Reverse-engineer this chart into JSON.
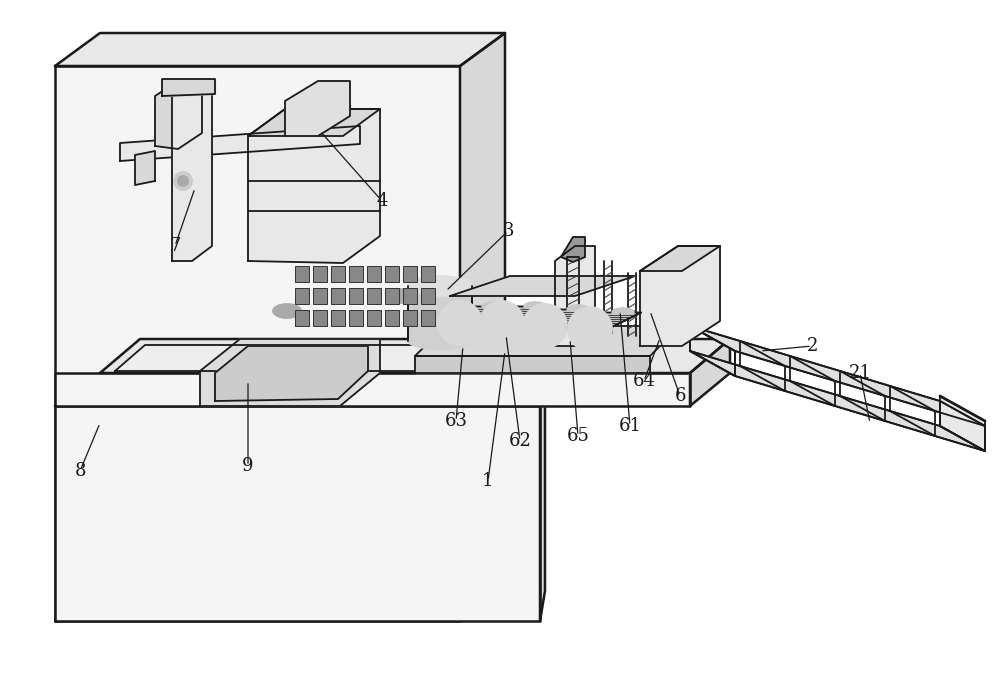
{
  "bg_color": "#ffffff",
  "lc": "#1a1a1a",
  "lw": 1.3,
  "tlw": 1.8,
  "fig_width": 10.0,
  "fig_height": 6.91,
  "dpi": 100,
  "fill_light": "#f5f5f5",
  "fill_mid": "#e8e8e8",
  "fill_dark": "#d8d8d8",
  "fill_very_dark": "#aaaaaa",
  "label_fontsize": 13
}
